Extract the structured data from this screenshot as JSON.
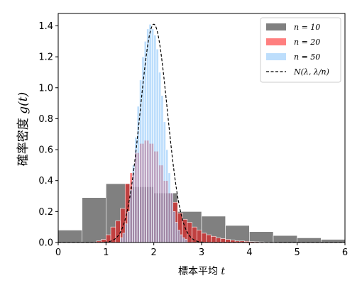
{
  "chart_data": {
    "type": "bar",
    "xlabel_text": "標本平均",
    "xlabel_var": "t",
    "ylabel_text": "確率密度",
    "ylabel_var": "g(t)",
    "xlim": [
      0,
      6
    ],
    "ylim": [
      0,
      1.48
    ],
    "xticks": [
      0,
      1,
      2,
      3,
      4,
      5,
      6
    ],
    "yticks": [
      0.0,
      0.2,
      0.4,
      0.6,
      0.8,
      1.0,
      1.2,
      1.4
    ],
    "xtick_labels": [
      "0",
      "1",
      "2",
      "3",
      "4",
      "5",
      "6"
    ],
    "ytick_labels": [
      "0.0",
      "0.2",
      "0.4",
      "0.6",
      "0.8",
      "1.0",
      "1.2",
      "1.4"
    ],
    "legend_position": "top-right",
    "grid": false,
    "series": [
      {
        "name": "n = 10",
        "kind": "histogram",
        "color": "#808080",
        "alpha": 1.0,
        "bin_edges": [
          0.0,
          0.5,
          1.0,
          1.5,
          2.0,
          2.5,
          3.0,
          3.5,
          4.0,
          4.5,
          5.0,
          5.5,
          6.0
        ],
        "values": [
          0.08,
          0.29,
          0.38,
          0.36,
          0.32,
          0.2,
          0.17,
          0.11,
          0.07,
          0.045,
          0.03,
          0.02
        ]
      },
      {
        "name": "n = 20",
        "kind": "histogram",
        "color": "#ff0000",
        "alpha": 0.5,
        "bin_edges": [
          0.8,
          0.9,
          1.0,
          1.1,
          1.2,
          1.3,
          1.4,
          1.5,
          1.6,
          1.7,
          1.8,
          1.9,
          2.0,
          2.1,
          2.2,
          2.3,
          2.4,
          2.5,
          2.6,
          2.7,
          2.8,
          2.9,
          3.0,
          3.1,
          3.2,
          3.3,
          3.4,
          3.5,
          3.6,
          3.7,
          3.8,
          3.9,
          4.0,
          4.1,
          4.2,
          4.3,
          4.4,
          4.5,
          4.6,
          4.7,
          4.8,
          4.9,
          5.0
        ],
        "values": [
          0.01,
          0.02,
          0.05,
          0.1,
          0.14,
          0.22,
          0.38,
          0.45,
          0.58,
          0.64,
          0.66,
          0.64,
          0.59,
          0.5,
          0.4,
          0.32,
          0.26,
          0.19,
          0.15,
          0.13,
          0.1,
          0.08,
          0.06,
          0.05,
          0.04,
          0.03,
          0.025,
          0.02,
          0.015,
          0.01,
          0.01,
          0.008,
          0.006,
          0.005,
          0.004,
          0.003,
          0.002,
          0.002,
          0.001,
          0.001,
          0.001,
          0.001
        ]
      },
      {
        "name": "n = 50",
        "kind": "histogram",
        "color": "#87c3fa",
        "alpha": 0.55,
        "bin_edges": [
          1.3,
          1.35,
          1.4,
          1.45,
          1.5,
          1.55,
          1.6,
          1.65,
          1.7,
          1.75,
          1.8,
          1.85,
          1.9,
          1.95,
          2.0,
          2.05,
          2.1,
          2.15,
          2.2,
          2.25,
          2.3,
          2.35,
          2.4,
          2.45,
          2.5,
          2.55,
          2.6,
          2.65,
          2.7
        ],
        "values": [
          0.03,
          0.06,
          0.12,
          0.2,
          0.34,
          0.5,
          0.68,
          0.88,
          1.05,
          1.2,
          1.3,
          1.38,
          1.41,
          1.38,
          1.34,
          1.25,
          1.1,
          0.95,
          0.78,
          0.6,
          0.45,
          0.32,
          0.2,
          0.13,
          0.08,
          0.05,
          0.03,
          0.02
        ]
      },
      {
        "name": "N(λ, λ/n)",
        "kind": "line",
        "color": "#000000",
        "dash": "dashed",
        "mean": 2.0,
        "variance": 0.08
      }
    ]
  }
}
